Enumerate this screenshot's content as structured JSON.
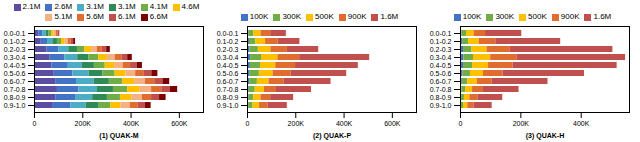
{
  "chart_data": [
    {
      "type": "bar",
      "orientation": "horizontal",
      "stacked": true,
      "legend": "top",
      "xlabel": "(1) QUAK-M",
      "categories": [
        "0.0-0.1",
        "0.1-0.2",
        "0.2-0.3",
        "0.3-0.4",
        "0.4-0.5",
        "0.5-0.6",
        "0.6-0.7",
        "0.7-0.8",
        "0.8-0.9",
        "0.9-1.0"
      ],
      "series": [
        {
          "name": "2.1M",
          "color": "#5b4ea0",
          "values": [
            18000,
            28000,
            52000,
            65000,
            72000,
            82000,
            90000,
            95000,
            88000,
            78000
          ]
        },
        {
          "name": "2.6M",
          "color": "#4472c4",
          "values": [
            16000,
            26000,
            48000,
            61000,
            68000,
            77000,
            84000,
            89000,
            82000,
            73000
          ]
        },
        {
          "name": "3.1M",
          "color": "#4bacc6",
          "values": [
            14000,
            22000,
            42000,
            53000,
            58000,
            67000,
            73000,
            77000,
            71000,
            63000
          ]
        },
        {
          "name": "3.1M",
          "color": "#2e8b57",
          "values": [
            12000,
            19000,
            36000,
            46000,
            50000,
            57000,
            63000,
            66000,
            61000,
            54000
          ]
        },
        {
          "name": "4.1M",
          "color": "#70ad47",
          "values": [
            11000,
            17000,
            31000,
            41000,
            45000,
            51000,
            56000,
            59000,
            54000,
            48000
          ]
        },
        {
          "name": "4.6M",
          "color": "#ffc000",
          "values": [
            10000,
            15000,
            27000,
            36000,
            39000,
            45000,
            49000,
            52000,
            48000,
            42000
          ]
        },
        {
          "name": "5.1M",
          "color": "#f4b183",
          "values": [
            9000,
            13000,
            24000,
            32000,
            35000,
            40000,
            44000,
            47000,
            43000,
            38000
          ]
        },
        {
          "name": "5.6M",
          "color": "#e06c30",
          "values": [
            8000,
            12000,
            21000,
            28000,
            31000,
            36000,
            39000,
            42000,
            38000,
            34000
          ]
        },
        {
          "name": "6.1M",
          "color": "#c0504d",
          "values": [
            7000,
            10000,
            18000,
            24000,
            27000,
            31000,
            34000,
            36000,
            33000,
            29000
          ]
        },
        {
          "name": "6.6M",
          "color": "#7b0000",
          "values": [
            0,
            8000,
            15000,
            19000,
            22000,
            25000,
            28000,
            30000,
            27000,
            24000
          ]
        }
      ],
      "xlim": [
        0,
        700000
      ],
      "xticks": [
        0,
        {
          "value": 200000,
          "label": "200K"
        },
        {
          "value": 400000,
          "label": "400K"
        },
        {
          "value": 600000,
          "label": "600K"
        }
      ]
    },
    {
      "type": "bar",
      "orientation": "horizontal",
      "stacked": true,
      "legend": "top",
      "xlabel": "(2) QUAK-P",
      "categories": [
        "0.0-0.1",
        "0.1-0.2",
        "0.2-0.3",
        "0.3-0.4",
        "0.4-0.5",
        "0.5-0.6",
        "0.6-0.7",
        "0.7-0.8",
        "0.8-0.9",
        "0.9-1.0"
      ],
      "series": [
        {
          "name": "100K",
          "color": "#4472c4",
          "values": [
            6000,
            8000,
            10000,
            13000,
            12000,
            11000,
            9000,
            7000,
            6000,
            5000
          ]
        },
        {
          "name": "300K",
          "color": "#70ad47",
          "values": [
            20000,
            27000,
            35000,
            45000,
            42000,
            38000,
            32000,
            25000,
            20000,
            18000
          ]
        },
        {
          "name": "500K",
          "color": "#ffc000",
          "values": [
            30000,
            40000,
            52000,
            68000,
            63000,
            57000,
            48000,
            38000,
            30000,
            27000
          ]
        },
        {
          "name": "900K",
          "color": "#e06c30",
          "values": [
            40000,
            52000,
            68000,
            90000,
            82000,
            75000,
            62000,
            50000,
            40000,
            35000
          ]
        },
        {
          "name": "1.6M",
          "color": "#c0504d",
          "values": [
            65000,
            90000,
            130000,
            290000,
            260000,
            230000,
            195000,
            145000,
            95000,
            80000
          ]
        }
      ],
      "xlim": [
        0,
        700000
      ],
      "xticks": [
        0,
        {
          "value": 200000,
          "label": "200K"
        },
        {
          "value": 400000,
          "label": "400K"
        },
        {
          "value": 600000,
          "label": "600K"
        }
      ]
    },
    {
      "type": "bar",
      "orientation": "horizontal",
      "stacked": true,
      "legend": "top",
      "xlabel": "(3) QUAK-H",
      "categories": [
        "0.0-0.1",
        "0.1-0.2",
        "0.2-0.3",
        "0.3-0.4",
        "0.4-0.5",
        "0.5-0.6",
        "0.6-0.7",
        "0.7-0.8",
        "0.8-0.9",
        "0.9-1.0"
      ],
      "series": [
        {
          "name": "100K",
          "color": "#4472c4",
          "values": [
            5000,
            7000,
            10000,
            11000,
            10000,
            8000,
            6000,
            4000,
            3000,
            2000
          ]
        },
        {
          "name": "300K",
          "color": "#70ad47",
          "values": [
            15000,
            20000,
            28000,
            32000,
            30000,
            25000,
            18000,
            13000,
            10000,
            8000
          ]
        },
        {
          "name": "500K",
          "color": "#ffc000",
          "values": [
            25000,
            35000,
            50000,
            57000,
            53000,
            43000,
            32000,
            23000,
            18000,
            14000
          ]
        },
        {
          "name": "900K",
          "color": "#e06c30",
          "values": [
            38000,
            55000,
            77000,
            87000,
            81000,
            65000,
            49000,
            36000,
            27000,
            21000
          ]
        },
        {
          "name": "1.6M",
          "color": "#c0504d",
          "values": [
            120000,
            215000,
            340000,
            360000,
            345000,
            270000,
            185000,
            118000,
            82000,
            60000
          ]
        }
      ],
      "xlim": [
        0,
        560000
      ],
      "xticks": [
        0,
        {
          "value": 200000,
          "label": "200K"
        },
        {
          "value": 400000,
          "label": "400K"
        }
      ]
    }
  ]
}
